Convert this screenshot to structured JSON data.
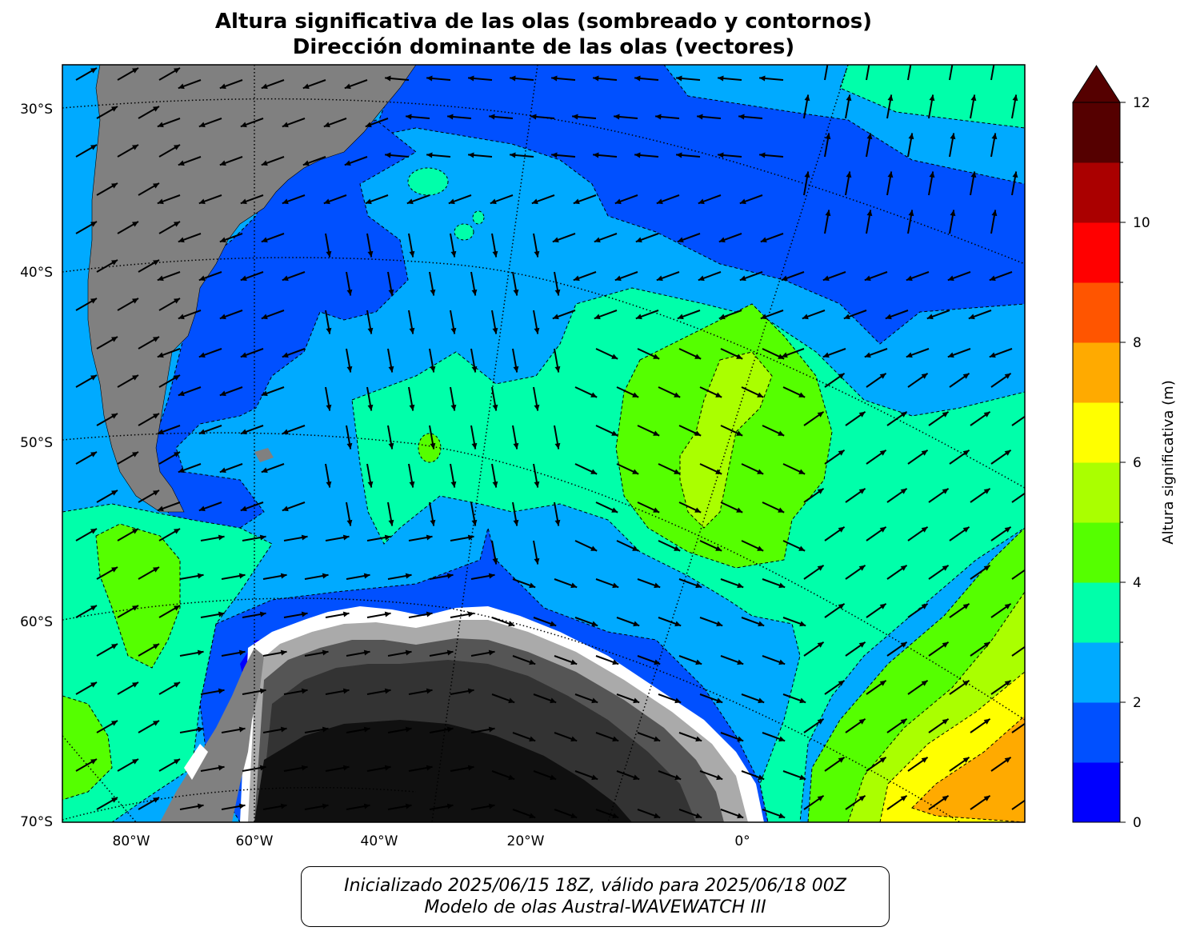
{
  "title": {
    "line1": "Altura significativa de las olas (sombreado y contornos)",
    "line2": "Dirección dominante de las olas (vectores)"
  },
  "axes": {
    "lat_ticks": [
      {
        "label": "30°S",
        "value": -30
      },
      {
        "label": "40°S",
        "value": -40
      },
      {
        "label": "50°S",
        "value": -50
      },
      {
        "label": "60°S",
        "value": -60
      },
      {
        "label": "70°S",
        "value": -70
      }
    ],
    "lon_ticks": [
      {
        "label": "80°W",
        "value": -80
      },
      {
        "label": "60°W",
        "value": -60
      },
      {
        "label": "40°W",
        "value": -40
      },
      {
        "label": "20°W",
        "value": -20
      },
      {
        "label": "0°",
        "value": 0
      }
    ]
  },
  "colorbar": {
    "label": "Altura significativa (m)",
    "tick_labels": [
      "0",
      "2",
      "4",
      "6",
      "8",
      "10",
      "12"
    ],
    "levels": [
      0,
      1,
      2,
      3,
      4,
      5,
      6,
      7,
      8,
      9,
      10,
      11,
      12
    ],
    "colors": [
      "#0000ff",
      "#0050ff",
      "#00aaff",
      "#00ffaa",
      "#55ff00",
      "#aaff00",
      "#ffff00",
      "#ffaa00",
      "#ff5500",
      "#ff0000",
      "#aa0000",
      "#550000"
    ],
    "extend": "max"
  },
  "caption": {
    "line1": "Inicializado 2025/06/15 18Z, válido para 2025/06/18 00Z",
    "line2": "Modelo de olas Austral-WAVEWATCH III"
  },
  "map_colors": {
    "land": "#808080",
    "ice_dark": "#101010",
    "ice_mid": "#333333",
    "ice_light": "#555555",
    "arrow": "#000000"
  }
}
